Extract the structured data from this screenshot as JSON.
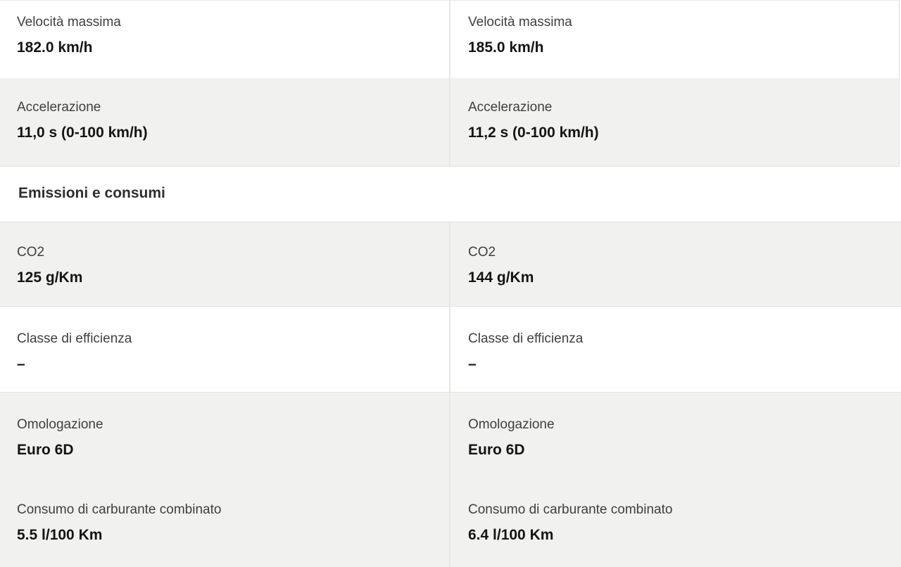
{
  "section_header": {
    "label": "Emissioni e consumi"
  },
  "rows": [
    {
      "left": {
        "label": "Velocità massima",
        "value": "182.0 km/h"
      },
      "right": {
        "label": "Velocità massima",
        "value": "185.0 km/h"
      }
    },
    {
      "left": {
        "label": "Accelerazione",
        "value": "11,0 s (0-100 km/h)"
      },
      "right": {
        "label": "Accelerazione",
        "value": "11,2 s (0-100 km/h)"
      }
    },
    {
      "left": {
        "label": "CO2",
        "value": "125 g/Km"
      },
      "right": {
        "label": "CO2",
        "value": "144 g/Km"
      }
    },
    {
      "left": {
        "label": "Classe di efficienza",
        "value": "–"
      },
      "right": {
        "label": "Classe di efficienza",
        "value": "–"
      }
    },
    {
      "left": {
        "label": "Omologazione",
        "value": "Euro 6D"
      },
      "right": {
        "label": "Omologazione",
        "value": "Euro 6D"
      }
    },
    {
      "left": {
        "label": "Consumo di carburante combinato",
        "value": "5.5 l/100 Km"
      },
      "right": {
        "label": "Consumo di carburante combinato",
        "value": "6.4 l/100 Km"
      }
    }
  ],
  "colors": {
    "row_shaded_bg": "#f1f1f0",
    "column_divider": "#e7e7e5",
    "section_border": "#e0e0e0",
    "label_text": "#3f3f3f",
    "value_text": "#141414",
    "header_text": "#2e2e2e"
  }
}
